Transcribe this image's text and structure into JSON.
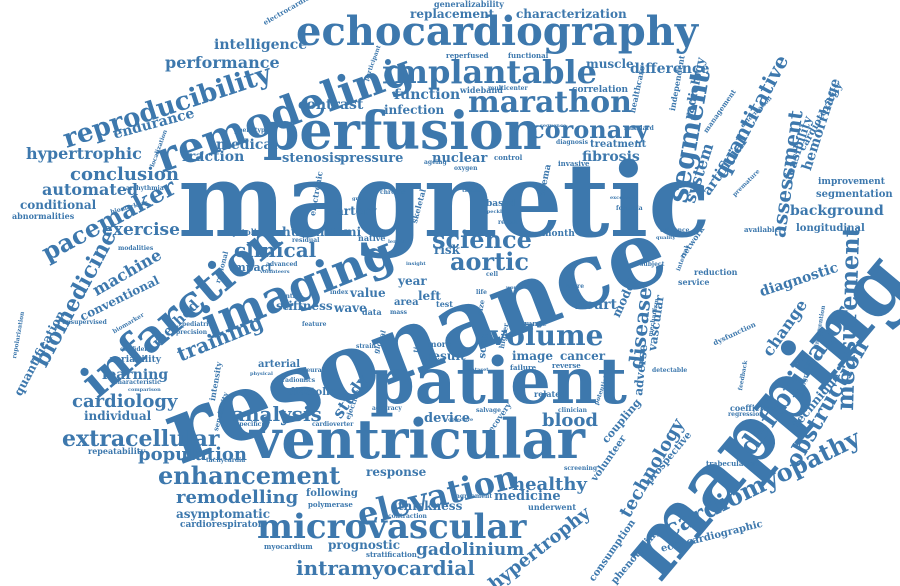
{
  "palette": {
    "word_color": "#3d78ad",
    "background": "#ffffff"
  },
  "words": {
    "magnetic": "magnetic",
    "resonance": "resonance",
    "mapping": "mapping",
    "patient": "patient",
    "ventricular": "ventricular",
    "perfusion": "perfusion",
    "echocardiography": "echocardiography",
    "remodeling": "remodeling",
    "imaging": "imaging",
    "infarction": "infarction",
    "implantable": "implantable",
    "marathon": "marathon",
    "microvascular": "microvascular",
    "elevation": "elevation",
    "cardiomyopathy": "cardiomyopathy",
    "defibrillator": "defibrillator",
    "volume": "volume",
    "segment": "segment",
    "reproducibility": "reproducibility",
    "pacemaker": "pacemaker",
    "science": "science",
    "aortic": "aortic",
    "coronary": "coronary",
    "enhancement": "enhancement",
    "extracellular": "extracellular",
    "measurement": "measurement",
    "obstruction": "obstruction",
    "intramyocardial": "intramyocardial",
    "hypertrophy": "hypertrophy",
    "biomedicine": "biomedicine",
    "quantitative": "quantitative",
    "assessment": "assessment",
    "analysis": "analysis",
    "clinical": "clinical",
    "training": "training",
    "population": "population",
    "remodelling": "remodelling",
    "gadolinium": "gadolinium",
    "technology": "technology",
    "disease": "disease",
    "healthy": "healthy",
    "blood": "blood",
    "cardiology": "cardiology",
    "conclusion": "conclusion",
    "automated": "automated",
    "hypertrophic": "hypertrophic",
    "fraction": "fraction",
    "performance": "performance",
    "intelligence": "intelligence",
    "function": "function",
    "infection": "infection",
    "contrast": "contrast",
    "medical": "medical",
    "endurance": "endurance",
    "stenosis": "stenosis",
    "pressure": "pressure",
    "nuclear": "nuclear",
    "fibrosis": "fibrosis",
    "treatment": "treatment",
    "system": "system",
    "radiology": "radiology",
    "artificial": "artificial",
    "difference": "difference",
    "replacement": "replacement",
    "characterization": "characterization",
    "generalizability": "generalizability",
    "electrocardiogram": "electrocardiogram",
    "muscle": "muscle",
    "participant": "participant",
    "reperfused": "reperfused",
    "functional": "functional",
    "wideband": "wideband",
    "multicenter": "multicenter",
    "correlation": "correlation",
    "healthcare": "healthcare",
    "independent": "independent",
    "management": "management",
    "cardiotoxicity": "cardiotoxicity",
    "hemorrhage": "hemorrhage",
    "feasibility": "feasibility",
    "improvement": "improvement",
    "segmentation": "segmentation",
    "background": "background",
    "longitudinal": "longitudinal",
    "diagnostic": "diagnostic",
    "change": "change",
    "technique": "technique",
    "coefficient": "coefficient",
    "regression": "regression",
    "trabeculation": "trabeculation",
    "echocardiographic": "echocardiographic",
    "phenotyping": "phenotyping",
    "consumption": "consumption",
    "prospective": "prospective",
    "volunteer": "volunteer",
    "coupling": "coupling",
    "vascular": "vascular",
    "adverse": "adverse",
    "heart": "heart",
    "model": "model",
    "underwent": "underwent",
    "medicine": "medicine",
    "thickness": "thickness",
    "agreement": "agreement",
    "response": "response",
    "following": "following",
    "polymerase": "polymerase",
    "contraction": "contraction",
    "prognostic": "prognostic",
    "stratification": "stratification",
    "myocardium": "myocardium",
    "cardiorespiratory": "cardiorespiratory",
    "asymptomatic": "asymptomatic",
    "tachycardia": "tachycardia",
    "repeatability": "repeatability",
    "individual": "individual",
    "learning": "learning",
    "variability": "variability",
    "confidence": "confidence",
    "method": "method",
    "stiffness": "stiffness",
    "machine": "machine",
    "conventional": "conventional",
    "quantification": "quantification",
    "exercise": "exercise",
    "conditional": "conditional",
    "abnormalities": "abnormalities",
    "biomarkers": "biomarkers",
    "arrhythmia": "arrhythmia",
    "repolarization": "repolarization",
    "unsupervised": "unsupervised",
    "biomarker": "biomarker",
    "human": "human",
    "stemi": "stemi",
    "systolic": "systolic",
    "impact": "impact",
    "advanced": "advanced",
    "artery": "artery",
    "electronic": "electronic",
    "native": "native",
    "risk": "risk",
    "year": "year",
    "value": "value",
    "left": "left",
    "area": "area",
    "wave": "wave",
    "index": "index",
    "result": "result",
    "scan": "scan",
    "image": "image",
    "cancer": "cancer",
    "more": "more",
    "range": "range",
    "study": "study",
    "device": "device",
    "arterial": "arterial",
    "diastolic": "diastolic",
    "intensity": "intensity",
    "sensitivity": "sensitivity",
    "specificity": "specificity",
    "cardioverter": "cardioverter",
    "ejection": "ejection",
    "recovery": "recovery",
    "related": "related",
    "salvage": "salvage",
    "clinician": "clinician",
    "screening": "screening",
    "failure": "failure",
    "reverse": "reverse",
    "detectable": "detectable",
    "reduction": "reduction",
    "service": "service",
    "available": "available",
    "intervention": "intervention",
    "angiography": "angiography",
    "network": "network",
    "interval": "interval",
    "month": "month",
    "based": "based",
    "edema": "edema",
    "invasive": "invasive",
    "control": "control",
    "premature": "premature",
    "formula": "formula",
    "excellent": "excellent",
    "evidence": "evidence",
    "quality": "quality",
    "feedback": "feedback",
    "deformation": "deformation",
    "subject": "subject",
    "potential": "potential",
    "mechanism": "mechanism",
    "dysfunction": "dysfunction",
    "diagnosis": "diagnosis",
    "sequence": "sequence",
    "standard": "standard",
    "ageing": "ageing",
    "oxygen": "oxygen",
    "skeletal": "skeletal",
    "phenotype": "phenotype",
    "localization": "localization",
    "modalities": "modalities",
    "regional": "regional",
    "central": "central",
    "residual": "residual",
    "volunteers": "volunteers",
    "pediatric": "pediatric",
    "precision": "precision",
    "feature": "feature",
    "strain": "strain",
    "global": "global",
    "mass": "mass",
    "test": "test",
    "time": "time",
    "data": "data",
    "size": "size",
    "higher": "higher",
    "accuracy": "accuracy",
    "objective": "objective",
    "characteristic": "characteristic",
    "comparison": "comparison",
    "dataset": "dataset",
    "neural": "neural",
    "physical": "physical",
    "radiomics": "radiomics",
    "grade": "grade",
    "chronic": "chronic",
    "retest": "retest",
    "life": "life",
    "cell": "cell",
    "speckle": "speckle",
    "tissue": "tissue",
    "insight": "insight",
    "length": "length",
    "world": "world",
    "score": "score"
  }
}
